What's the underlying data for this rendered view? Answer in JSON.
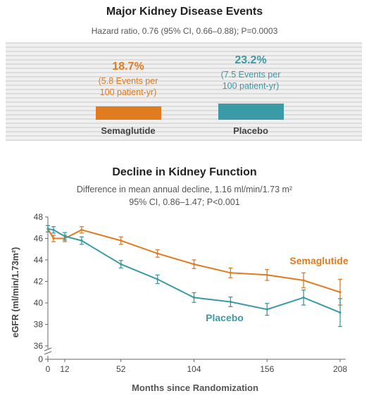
{
  "colors": {
    "semaglutide": "#e07b20",
    "placebo": "#3a9aa6",
    "axis": "#666666"
  },
  "top_panel": {
    "title": "Major Kidney Disease Events",
    "subtitle": "Hazard ratio, 0.76 (95% CI, 0.66–0.88); P=0.0003",
    "groups": [
      {
        "name": "Semaglutide",
        "percent": "18.7%",
        "events_line1": "(5.8 Events per",
        "events_line2": "100 patient-yr)",
        "value": 18.7
      },
      {
        "name": "Placebo",
        "percent": "23.2%",
        "events_line1": "(7.5 Events per",
        "events_line2": "100 patient-yr)",
        "value": 23.2
      }
    ]
  },
  "chart_data": {
    "type": "line",
    "title": "Decline in Kidney Function",
    "subtitle_line1": "Difference in mean annual decline, 1.16 ml/min/1.73 m²",
    "subtitle_line2": "95% CI, 0.86–1.47; P<0.001",
    "xlabel": "Months since Randomization",
    "ylabel": "eGFR (ml/min/1.73m²)",
    "xticks": [
      0,
      12,
      52,
      104,
      156,
      208
    ],
    "x_tick_labels": [
      "0",
      "12",
      "52",
      "104",
      "156",
      "208"
    ],
    "yticks": [
      0,
      36,
      38,
      40,
      42,
      44,
      46,
      48
    ],
    "y_tick_labels": [
      "0",
      "36",
      "38",
      "40",
      "42",
      "44",
      "46",
      "48"
    ],
    "ylim": [
      36,
      48
    ],
    "axis_break": true,
    "series": [
      {
        "name": "Semaglutide",
        "x": [
          0,
          4,
          12,
          24,
          52,
          78,
          104,
          130,
          156,
          182,
          208
        ],
        "y": [
          46.9,
          46.0,
          46.0,
          46.8,
          45.8,
          44.6,
          43.6,
          42.8,
          42.6,
          42.1,
          41.0
        ],
        "err": [
          0.3,
          0.3,
          0.3,
          0.3,
          0.35,
          0.35,
          0.4,
          0.45,
          0.5,
          0.7,
          1.2
        ]
      },
      {
        "name": "Placebo",
        "x": [
          0,
          4,
          12,
          24,
          52,
          78,
          104,
          130,
          156,
          182,
          208
        ],
        "y": [
          46.9,
          46.8,
          46.2,
          45.8,
          43.6,
          42.2,
          40.5,
          40.1,
          39.4,
          40.5,
          39.1
        ],
        "err": [
          0.3,
          0.3,
          0.35,
          0.35,
          0.35,
          0.4,
          0.45,
          0.45,
          0.55,
          0.7,
          1.3
        ]
      }
    ]
  }
}
